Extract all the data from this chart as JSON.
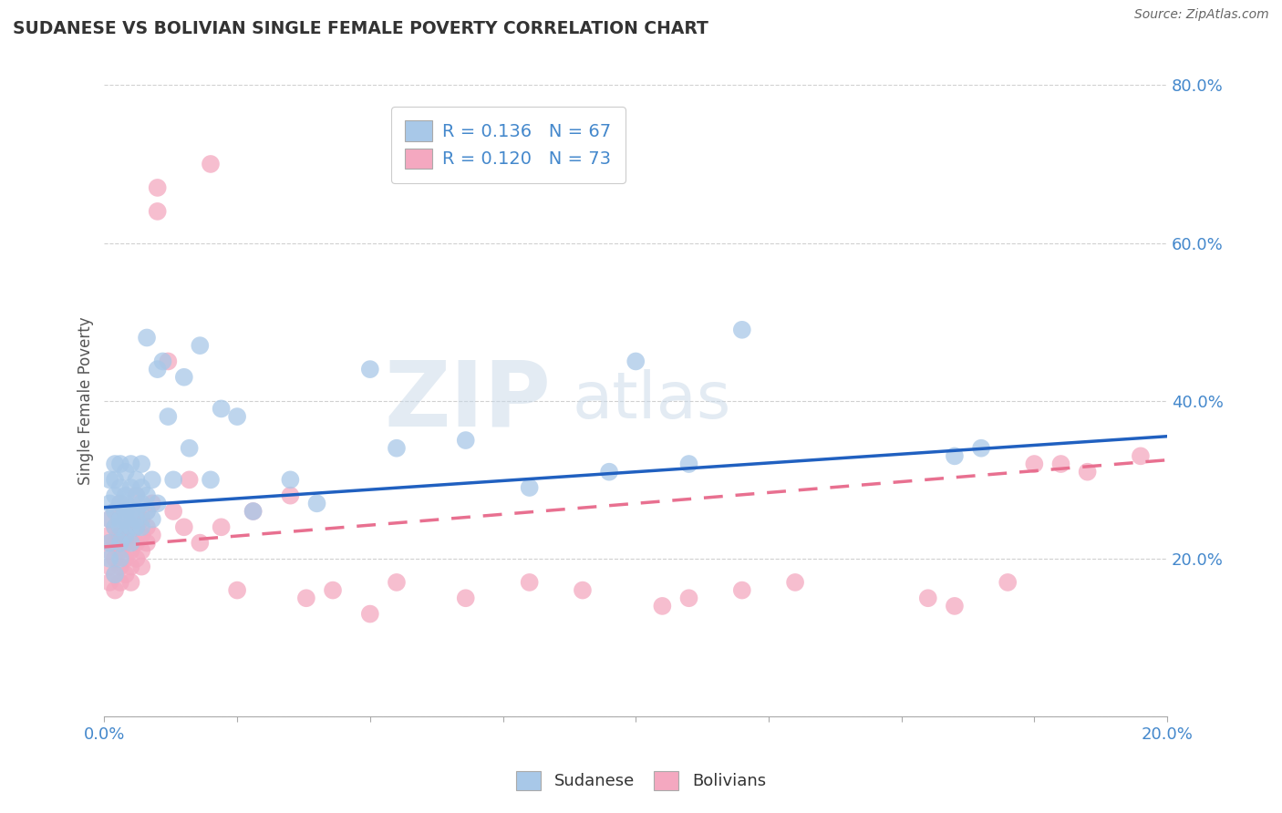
{
  "title": "SUDANESE VS BOLIVIAN SINGLE FEMALE POVERTY CORRELATION CHART",
  "source": "Source: ZipAtlas.com",
  "ylabel": "Single Female Poverty",
  "xlim": [
    0.0,
    0.2
  ],
  "ylim": [
    0.0,
    0.8
  ],
  "sudanese_color": "#a8c8e8",
  "bolivian_color": "#f4a8c0",
  "sudanese_line_color": "#2060c0",
  "bolivian_line_color": "#e87090",
  "legend_r1": "R = 0.136",
  "legend_n1": "N = 67",
  "legend_r2": "R = 0.120",
  "legend_n2": "N = 73",
  "watermark_zip": "ZIP",
  "watermark_atlas": "atlas",
  "background_color": "#ffffff",
  "grid_color": "#d0d0d0",
  "sudanese_x": [
    0.001,
    0.001,
    0.001,
    0.001,
    0.001,
    0.002,
    0.002,
    0.002,
    0.002,
    0.002,
    0.002,
    0.003,
    0.003,
    0.003,
    0.003,
    0.003,
    0.003,
    0.003,
    0.004,
    0.004,
    0.004,
    0.004,
    0.004,
    0.004,
    0.005,
    0.005,
    0.005,
    0.005,
    0.005,
    0.006,
    0.006,
    0.006,
    0.006,
    0.006,
    0.007,
    0.007,
    0.007,
    0.007,
    0.008,
    0.008,
    0.008,
    0.009,
    0.009,
    0.01,
    0.01,
    0.011,
    0.012,
    0.013,
    0.015,
    0.016,
    0.018,
    0.02,
    0.022,
    0.025,
    0.028,
    0.035,
    0.04,
    0.05,
    0.055,
    0.068,
    0.08,
    0.095,
    0.1,
    0.11,
    0.12,
    0.16,
    0.165
  ],
  "sudanese_y": [
    0.27,
    0.25,
    0.22,
    0.3,
    0.2,
    0.28,
    0.24,
    0.32,
    0.26,
    0.18,
    0.3,
    0.25,
    0.27,
    0.29,
    0.22,
    0.24,
    0.2,
    0.32,
    0.26,
    0.28,
    0.23,
    0.31,
    0.25,
    0.27,
    0.29,
    0.24,
    0.26,
    0.32,
    0.22,
    0.28,
    0.24,
    0.26,
    0.3,
    0.25,
    0.27,
    0.29,
    0.24,
    0.32,
    0.28,
    0.26,
    0.48,
    0.3,
    0.25,
    0.27,
    0.44,
    0.45,
    0.38,
    0.3,
    0.43,
    0.34,
    0.47,
    0.3,
    0.39,
    0.38,
    0.26,
    0.3,
    0.27,
    0.44,
    0.34,
    0.35,
    0.29,
    0.31,
    0.45,
    0.32,
    0.49,
    0.33,
    0.34
  ],
  "bolivian_x": [
    0.001,
    0.001,
    0.001,
    0.001,
    0.001,
    0.001,
    0.002,
    0.002,
    0.002,
    0.002,
    0.002,
    0.002,
    0.003,
    0.003,
    0.003,
    0.003,
    0.003,
    0.003,
    0.003,
    0.004,
    0.004,
    0.004,
    0.004,
    0.004,
    0.005,
    0.005,
    0.005,
    0.005,
    0.005,
    0.006,
    0.006,
    0.006,
    0.006,
    0.006,
    0.007,
    0.007,
    0.007,
    0.007,
    0.008,
    0.008,
    0.008,
    0.009,
    0.009,
    0.01,
    0.01,
    0.012,
    0.013,
    0.015,
    0.016,
    0.018,
    0.02,
    0.022,
    0.025,
    0.028,
    0.035,
    0.038,
    0.043,
    0.05,
    0.055,
    0.068,
    0.08,
    0.09,
    0.105,
    0.11,
    0.12,
    0.13,
    0.155,
    0.16,
    0.17,
    0.175,
    0.18,
    0.185,
    0.195
  ],
  "bolivian_y": [
    0.22,
    0.19,
    0.25,
    0.17,
    0.21,
    0.23,
    0.2,
    0.24,
    0.18,
    0.26,
    0.22,
    0.16,
    0.21,
    0.23,
    0.19,
    0.25,
    0.17,
    0.22,
    0.27,
    0.2,
    0.24,
    0.18,
    0.26,
    0.22,
    0.21,
    0.23,
    0.19,
    0.25,
    0.17,
    0.2,
    0.24,
    0.22,
    0.28,
    0.26,
    0.21,
    0.23,
    0.19,
    0.25,
    0.24,
    0.22,
    0.26,
    0.23,
    0.27,
    0.64,
    0.67,
    0.45,
    0.26,
    0.24,
    0.3,
    0.22,
    0.7,
    0.24,
    0.16,
    0.26,
    0.28,
    0.15,
    0.16,
    0.13,
    0.17,
    0.15,
    0.17,
    0.16,
    0.14,
    0.15,
    0.16,
    0.17,
    0.15,
    0.14,
    0.17,
    0.32,
    0.32,
    0.31,
    0.33
  ],
  "trend_sue_x0": 0.0,
  "trend_sue_y0": 0.265,
  "trend_sue_x1": 0.2,
  "trend_sue_y1": 0.355,
  "trend_bol_x0": 0.0,
  "trend_bol_y0": 0.215,
  "trend_bol_x1": 0.2,
  "trend_bol_y1": 0.325
}
